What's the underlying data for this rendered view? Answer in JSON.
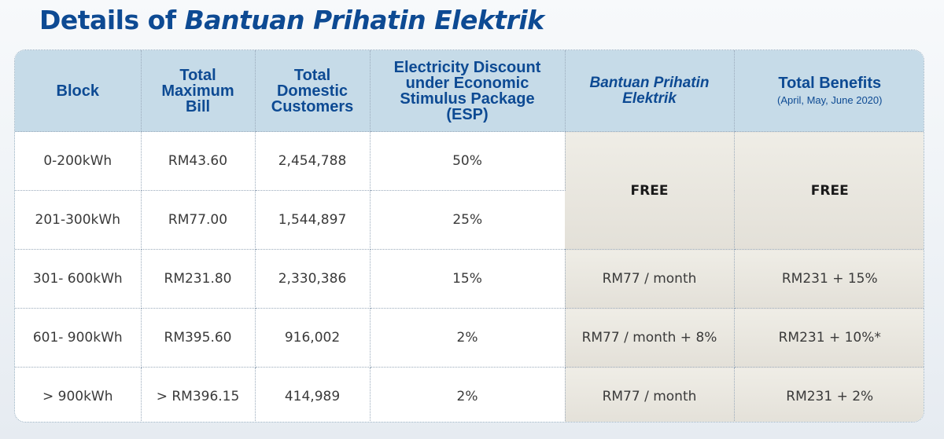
{
  "title": {
    "prefix": "Details of ",
    "emphasis": "Bantuan Prihatin Elektrik"
  },
  "columns": [
    {
      "label": "Block",
      "sub": ""
    },
    {
      "label": "Total Maximum Bill",
      "sub": ""
    },
    {
      "label": "Total Domestic Customers",
      "sub": ""
    },
    {
      "label": "Electricity Discount under Economic Stimulus Package (ESP)",
      "sub": ""
    },
    {
      "label": "Bantuan Prihatin Elektrik",
      "sub": ""
    },
    {
      "label": "Total Benefits",
      "sub": "(April, May, June 2020)"
    }
  ],
  "rows": [
    {
      "block": "0-200kWh",
      "bill": "RM43.60",
      "customers": "2,454,788",
      "esp": "50%"
    },
    {
      "block": "201-300kWh",
      "bill": "RM77.00",
      "customers": "1,544,897",
      "esp": "25%"
    },
    {
      "block": "301- 600kWh",
      "bill": "RM231.80",
      "customers": "2,330,386",
      "esp": "15%",
      "bpe": "RM77 / month",
      "total": "RM231 + 15%"
    },
    {
      "block": "601- 900kWh",
      "bill": "RM395.60",
      "customers": "916,002",
      "esp": "2%",
      "bpe": "RM77 / month + 8%",
      "total": "RM231 + 10%*"
    },
    {
      "block": "> 900kWh",
      "bill": "> RM396.15",
      "customers": "414,989",
      "esp": "2%",
      "bpe": "RM77 / month",
      "total": "RM231 + 2%"
    }
  ],
  "merged": {
    "bpe": "FREE",
    "total": "FREE"
  },
  "colors": {
    "title": "#0d4a93",
    "header_bg": "#c6dbe8",
    "shaded_cell": "#e9e7e0"
  }
}
